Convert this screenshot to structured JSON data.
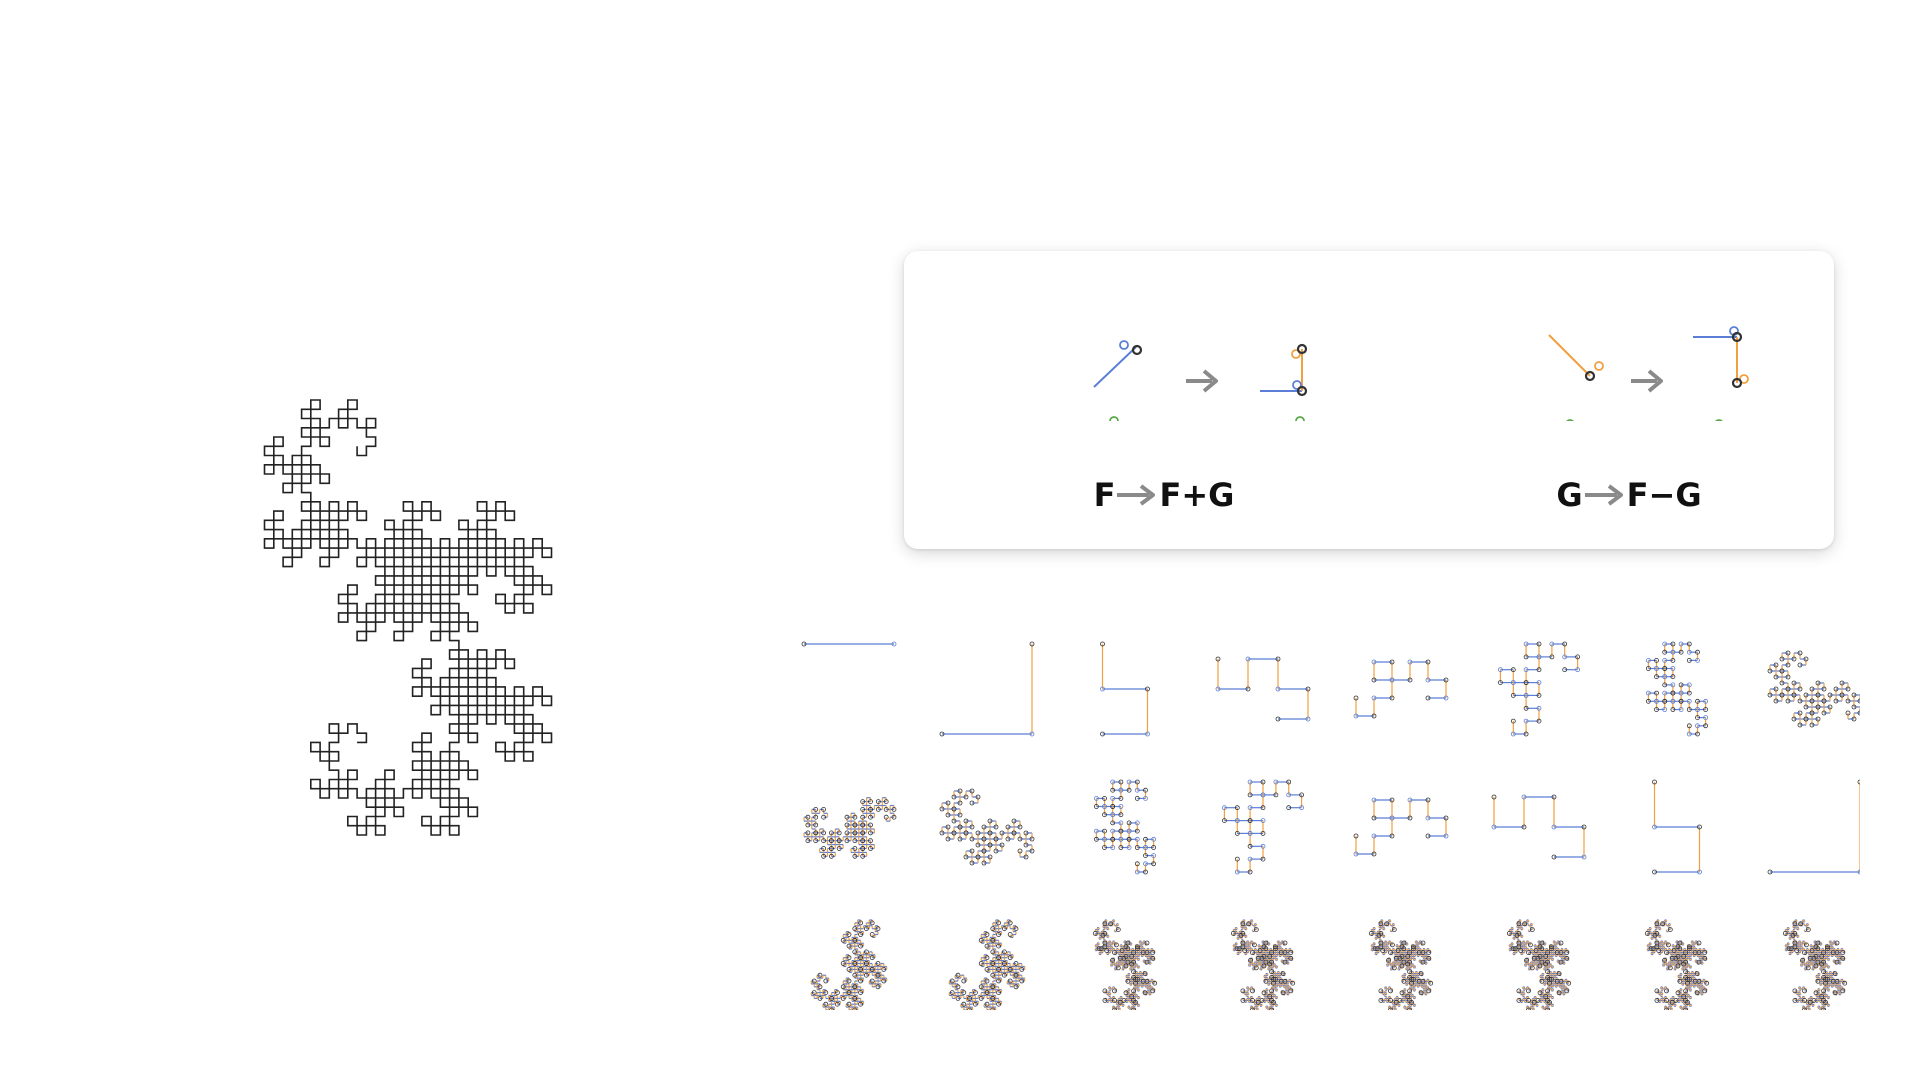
{
  "colors": {
    "curve": "#222222",
    "f_segment": "#5b7fd6",
    "g_segment": "#f0a040",
    "head_marker": "#333333",
    "origin_marker": "#5aa84a",
    "arrow": "#8a8a8a"
  },
  "rules": [
    {
      "lhs": "F",
      "rhs": "F+G"
    },
    {
      "lhs": "G",
      "rhs": "F−G"
    }
  ],
  "iterations": {
    "rows": 3,
    "columns": 8
  },
  "icons": [
    "right-arrow-icon",
    "circle-marker-icon"
  ]
}
